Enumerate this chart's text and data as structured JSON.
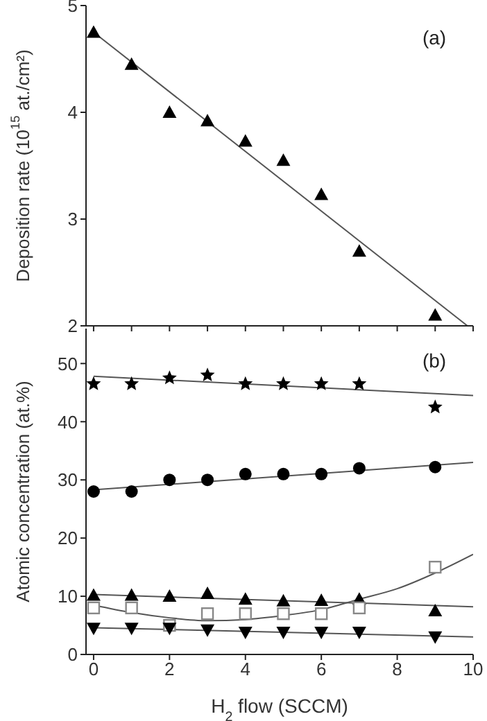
{
  "chart_data": [
    {
      "type": "scatter",
      "ylabel": "Deposition rate (10$^{15}$ at./cm²)",
      "annotations": [
        "(a)"
      ],
      "xlim": [
        -0.2,
        10
      ],
      "ylim": [
        2,
        5
      ],
      "xticks": [
        0,
        1,
        2,
        3,
        4,
        5,
        6,
        7,
        8,
        9,
        10
      ],
      "yticks": [
        2,
        3,
        4,
        5
      ],
      "tick_labels": "y",
      "series": [
        {
          "marker": "triangle",
          "color": "#000000",
          "x": [
            0,
            1,
            2,
            3,
            4,
            5,
            6,
            7,
            9
          ],
          "values": [
            4.75,
            4.45,
            4.0,
            3.92,
            3.73,
            3.55,
            3.23,
            2.7,
            2.1
          ]
        },
        {
          "type": "line",
          "marker": "none",
          "color": "#555555",
          "x": [
            0,
            9.85
          ],
          "values": [
            4.75,
            2.0
          ]
        }
      ]
    },
    {
      "type": "scatter",
      "xlabel": "H$_{2}$ flow (SCCM)",
      "ylabel": "Atomic concentration (at.%)",
      "annotations": [
        "(b)"
      ],
      "xlim": [
        -0.2,
        10
      ],
      "ylim": [
        0,
        56
      ],
      "xticks": [
        0,
        2,
        4,
        6,
        8,
        10
      ],
      "yticks": [
        0,
        10,
        20,
        30,
        40,
        50
      ],
      "series": [
        {
          "marker": "star",
          "color": "#000000",
          "x": [
            0,
            1,
            2,
            3,
            4,
            5,
            6,
            7,
            9
          ],
          "values": [
            46.5,
            46.5,
            47.5,
            48,
            46.5,
            46.5,
            46.5,
            46.5,
            42.5
          ]
        },
        {
          "marker": "circle",
          "color": "#000000",
          "x": [
            0,
            1,
            2,
            3,
            4,
            5,
            6,
            7,
            9
          ],
          "values": [
            28,
            28,
            30,
            30,
            31,
            31,
            31,
            32,
            32.2
          ]
        },
        {
          "marker": "triangle",
          "color": "#000000",
          "x": [
            0,
            1,
            2,
            3,
            4,
            5,
            6,
            7,
            9
          ],
          "values": [
            10.2,
            10.2,
            10,
            10.5,
            9.5,
            9.2,
            9.3,
            9.5,
            7.5
          ]
        },
        {
          "marker": "square",
          "color": "#888888",
          "x": [
            0,
            1,
            2,
            3,
            4,
            5,
            6,
            7,
            9
          ],
          "values": [
            8,
            8,
            5,
            7,
            7,
            7,
            7,
            8,
            15
          ]
        },
        {
          "marker": "triangle-down",
          "color": "#000000",
          "x": [
            0,
            1,
            2,
            3,
            4,
            5,
            6,
            7,
            9
          ],
          "values": [
            4.5,
            4.5,
            4.5,
            4.2,
            3.8,
            3.8,
            3.8,
            3.8,
            3.0
          ]
        },
        {
          "type": "line",
          "marker": "none",
          "color": "#555555",
          "x": [
            0,
            10
          ],
          "values": [
            47.8,
            44.5
          ]
        },
        {
          "type": "line",
          "marker": "none",
          "color": "#555555",
          "x": [
            0,
            10
          ],
          "values": [
            28.3,
            33
          ]
        },
        {
          "type": "line",
          "marker": "none",
          "color": "#555555",
          "x": [
            0,
            10
          ],
          "values": [
            10.3,
            8.2
          ]
        },
        {
          "type": "line",
          "marker": "none",
          "color": "#555555",
          "x": [
            0,
            1,
            2,
            3,
            4,
            5,
            6,
            7,
            8,
            9,
            10
          ],
          "values": [
            8.5,
            7.2,
            6.3,
            5.8,
            6,
            6.7,
            7.7,
            9.5,
            11.3,
            14,
            17.2
          ]
        },
        {
          "type": "line",
          "marker": "none",
          "color": "#555555",
          "x": [
            0,
            10
          ],
          "values": [
            4.6,
            3.0
          ]
        }
      ]
    }
  ]
}
